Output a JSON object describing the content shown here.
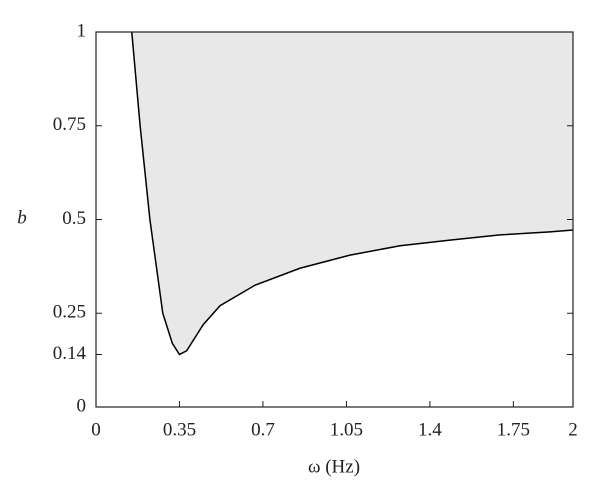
{
  "chart_data": {
    "type": "line",
    "x_label": "ω (Hz)",
    "y_label": "b",
    "x": [
      0.15,
      0.185,
      0.226,
      0.28,
      0.32,
      0.35,
      0.38,
      0.45,
      0.52,
      0.667,
      0.855,
      1.065,
      1.275,
      1.484,
      1.694,
      1.904,
      2
    ],
    "values": [
      1,
      0.75,
      0.5,
      0.25,
      0.17,
      0.14,
      0.15,
      0.22,
      0.27,
      0.325,
      0.37,
      0.405,
      0.43,
      0.445,
      0.459,
      0.467,
      0.472
    ],
    "color": "#000000",
    "fill_above": true,
    "fill_color": "#e8e8e8",
    "xlim": [
      0,
      2
    ],
    "ylim": [
      0,
      1
    ],
    "xticks": [
      0,
      0.35,
      0.7,
      1.05,
      1.4,
      1.75,
      2
    ],
    "yticks": [
      0,
      0.14,
      0.25,
      0.5,
      0.75,
      1
    ]
  }
}
